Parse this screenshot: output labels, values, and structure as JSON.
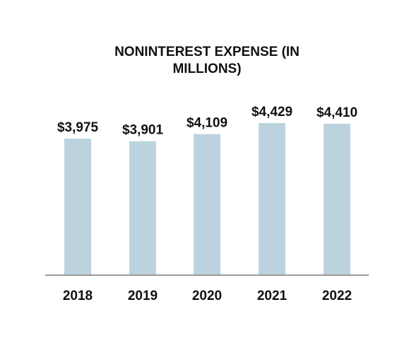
{
  "chart_data": {
    "type": "bar",
    "title_lines": [
      "NONINTEREST EXPENSE (IN",
      "MILLIONS)"
    ],
    "categories": [
      "2018",
      "2019",
      "2020",
      "2021",
      "2022"
    ],
    "values": [
      3975,
      3901,
      4109,
      4429,
      4410
    ],
    "data_labels": [
      "$3,975",
      "$3,901",
      "$4,109",
      "$4,429",
      "$4,410"
    ],
    "xlabel": "",
    "ylabel": "",
    "ylim": [
      0,
      4429
    ],
    "grid": false,
    "colors": {
      "bar": "#bcd3df",
      "axis": "#9a9a9a",
      "text": "#111111"
    }
  }
}
